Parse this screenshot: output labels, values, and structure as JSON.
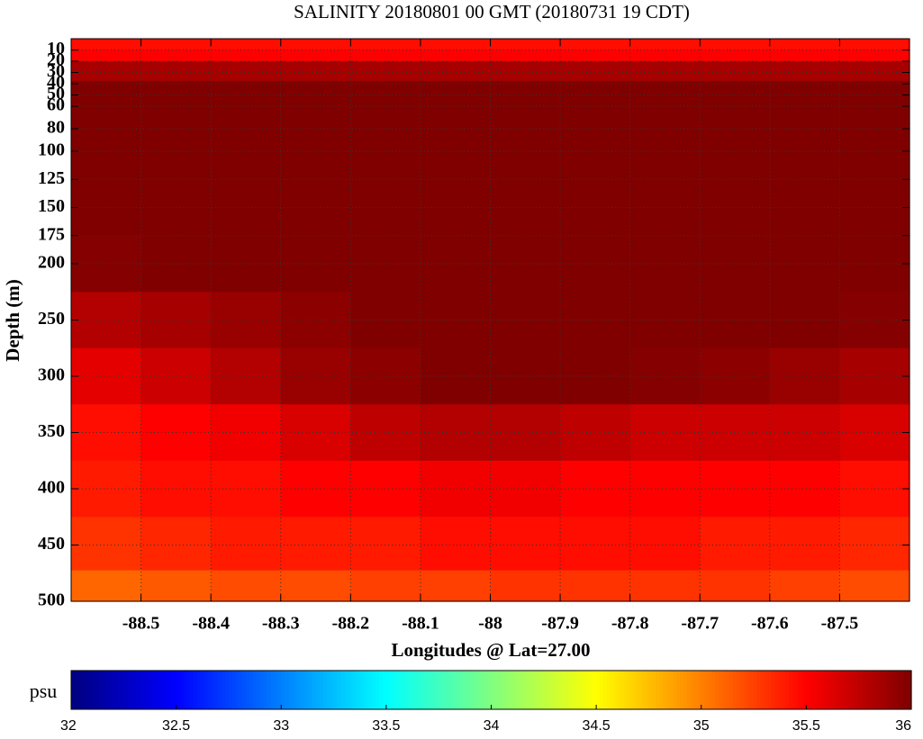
{
  "chart_data": {
    "type": "heatmap",
    "title": "SALINITY 20180801 00 GMT (20180731 19 CDT)",
    "x_label": "Longitudes @ Lat=27.00",
    "y_label": "Depth (m)",
    "colorbar_label": "psu",
    "colormap": "jet",
    "grid": true,
    "y_inverted": true,
    "xlim": [
      -88.6,
      -87.4
    ],
    "xticks": [
      -88.5,
      -88.4,
      -88.3,
      -88.2,
      -88.1,
      -88,
      -87.9,
      -87.8,
      -87.7,
      -87.6,
      -87.5
    ],
    "ylim": [
      0,
      500
    ],
    "yticks": [
      10,
      20,
      30,
      40,
      50,
      60,
      80,
      100,
      125,
      150,
      175,
      200,
      250,
      300,
      350,
      400,
      450,
      500
    ],
    "zlim": [
      32,
      36
    ],
    "zticks": [
      32,
      32.5,
      33,
      33.5,
      34,
      34.5,
      35,
      35.5,
      36
    ],
    "x": [
      -88.55,
      -88.45,
      -88.35,
      -88.25,
      -88.15,
      -88.05,
      -87.95,
      -87.85,
      -87.75,
      -87.65,
      -87.55,
      -87.45
    ],
    "y": [
      5,
      15,
      25,
      50,
      100,
      150,
      200,
      250,
      300,
      350,
      400,
      450,
      495
    ],
    "z": [
      [
        35.45,
        35.45,
        35.45,
        35.45,
        35.45,
        35.45,
        35.45,
        35.45,
        35.45,
        35.45,
        35.45,
        35.45
      ],
      [
        35.5,
        35.5,
        35.5,
        35.5,
        35.5,
        35.5,
        35.5,
        35.5,
        35.5,
        35.5,
        35.5,
        35.5
      ],
      [
        35.85,
        35.85,
        35.85,
        35.85,
        35.85,
        35.85,
        35.85,
        35.85,
        35.85,
        35.85,
        35.85,
        35.85
      ],
      [
        36,
        36,
        36,
        36,
        36,
        36,
        36,
        36,
        36,
        36,
        36,
        36
      ],
      [
        36,
        36,
        36,
        36,
        36,
        36,
        36,
        36,
        36,
        36,
        36,
        36
      ],
      [
        36,
        36,
        36,
        36,
        36,
        36,
        36,
        36,
        36,
        36,
        36,
        36
      ],
      [
        35.98,
        36,
        36,
        36,
        36,
        36,
        36,
        36,
        36,
        36,
        36,
        36
      ],
      [
        35.8,
        35.85,
        35.9,
        35.95,
        36,
        36,
        36,
        36,
        36,
        36,
        36,
        35.98
      ],
      [
        35.6,
        35.7,
        35.8,
        35.9,
        35.95,
        36,
        36,
        36,
        35.98,
        35.95,
        35.9,
        35.85
      ],
      [
        35.45,
        35.5,
        35.55,
        35.65,
        35.75,
        35.8,
        35.8,
        35.75,
        35.7,
        35.7,
        35.7,
        35.65
      ],
      [
        35.4,
        35.45,
        35.45,
        35.5,
        35.5,
        35.55,
        35.55,
        35.5,
        35.5,
        35.5,
        35.5,
        35.45
      ],
      [
        35.3,
        35.35,
        35.4,
        35.4,
        35.4,
        35.45,
        35.45,
        35.45,
        35.45,
        35.4,
        35.4,
        35.35
      ],
      [
        35.1,
        35.15,
        35.2,
        35.2,
        35.25,
        35.25,
        35.3,
        35.3,
        35.3,
        35.3,
        35.25,
        35.2
      ]
    ]
  }
}
